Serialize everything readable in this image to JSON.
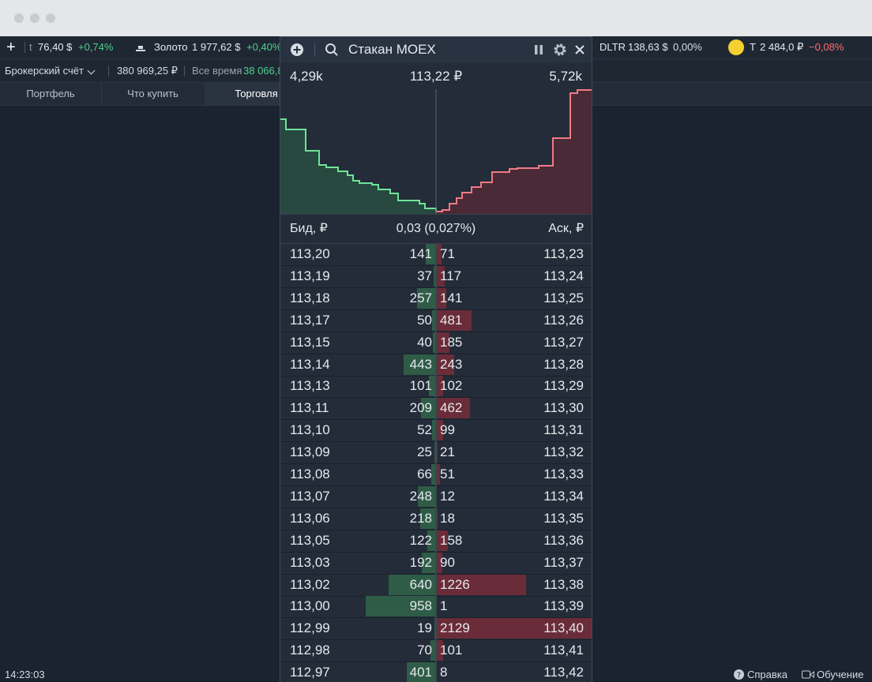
{
  "ticker": [
    {
      "name": "t",
      "price": "76,40 $",
      "change": "+0,74%",
      "trend": "up"
    },
    {
      "name": "Золото",
      "price": "1 977,62 $",
      "change": "+0,40%",
      "trend": "up"
    },
    {
      "name": "DLTR",
      "price": "138,63 $",
      "change": "0,00%",
      "trend": "flat"
    },
    {
      "name": "T",
      "price": "2 484,0 ₽",
      "change": "−0,08%",
      "trend": "down"
    }
  ],
  "account": {
    "name": "Брокерский счёт",
    "balance": "380 969,25 ₽",
    "period": "Все время",
    "profit": "38 066,8"
  },
  "tabs": [
    "Портфель",
    "Что купить",
    "Торговля"
  ],
  "order_book": {
    "title": "Стакан MOEX",
    "bid_total": "4,29k",
    "mid_price": "113,22 ₽",
    "ask_total": "5,72k",
    "bid_header": "Бид, ₽",
    "spread": "0,03 (0,027%)",
    "ask_header": "Аск, ₽",
    "rows": [
      {
        "bid_price": "113,20",
        "bid_volume": 141,
        "ask_volume": 71,
        "ask_price": "113,23"
      },
      {
        "bid_price": "113,19",
        "bid_volume": 37,
        "ask_volume": 117,
        "ask_price": "113,24"
      },
      {
        "bid_price": "113,18",
        "bid_volume": 257,
        "ask_volume": 141,
        "ask_price": "113,25"
      },
      {
        "bid_price": "113,17",
        "bid_volume": 50,
        "ask_volume": 481,
        "ask_price": "113,26"
      },
      {
        "bid_price": "113,15",
        "bid_volume": 40,
        "ask_volume": 185,
        "ask_price": "113,27"
      },
      {
        "bid_price": "113,14",
        "bid_volume": 443,
        "ask_volume": 243,
        "ask_price": "113,28"
      },
      {
        "bid_price": "113,13",
        "bid_volume": 101,
        "ask_volume": 102,
        "ask_price": "113,29"
      },
      {
        "bid_price": "113,11",
        "bid_volume": 209,
        "ask_volume": 462,
        "ask_price": "113,30"
      },
      {
        "bid_price": "113,10",
        "bid_volume": 52,
        "ask_volume": 99,
        "ask_price": "113,31"
      },
      {
        "bid_price": "113,09",
        "bid_volume": 25,
        "ask_volume": 21,
        "ask_price": "113,32"
      },
      {
        "bid_price": "113,08",
        "bid_volume": 66,
        "ask_volume": 51,
        "ask_price": "113,33"
      },
      {
        "bid_price": "113,07",
        "bid_volume": 248,
        "ask_volume": 12,
        "ask_price": "113,34"
      },
      {
        "bid_price": "113,06",
        "bid_volume": 218,
        "ask_volume": 18,
        "ask_price": "113,35"
      },
      {
        "bid_price": "113,05",
        "bid_volume": 122,
        "ask_volume": 158,
        "ask_price": "113,36"
      },
      {
        "bid_price": "113,03",
        "bid_volume": 192,
        "ask_volume": 90,
        "ask_price": "113,37"
      },
      {
        "bid_price": "113,02",
        "bid_volume": 640,
        "ask_volume": 1226,
        "ask_price": "113,38"
      },
      {
        "bid_price": "113,00",
        "bid_volume": 958,
        "ask_volume": 1,
        "ask_price": "113,39"
      },
      {
        "bid_price": "112,99",
        "bid_volume": 19,
        "ask_volume": 2129,
        "ask_price": "113,40"
      },
      {
        "bid_price": "112,98",
        "bid_volume": 70,
        "ask_volume": 101,
        "ask_price": "113,41"
      },
      {
        "bid_price": "112,97",
        "bid_volume": 401,
        "ask_volume": 8,
        "ask_price": "113,42"
      }
    ]
  },
  "status": {
    "time": "14:23:03",
    "help": "Справка",
    "learn": "Обучение"
  }
}
